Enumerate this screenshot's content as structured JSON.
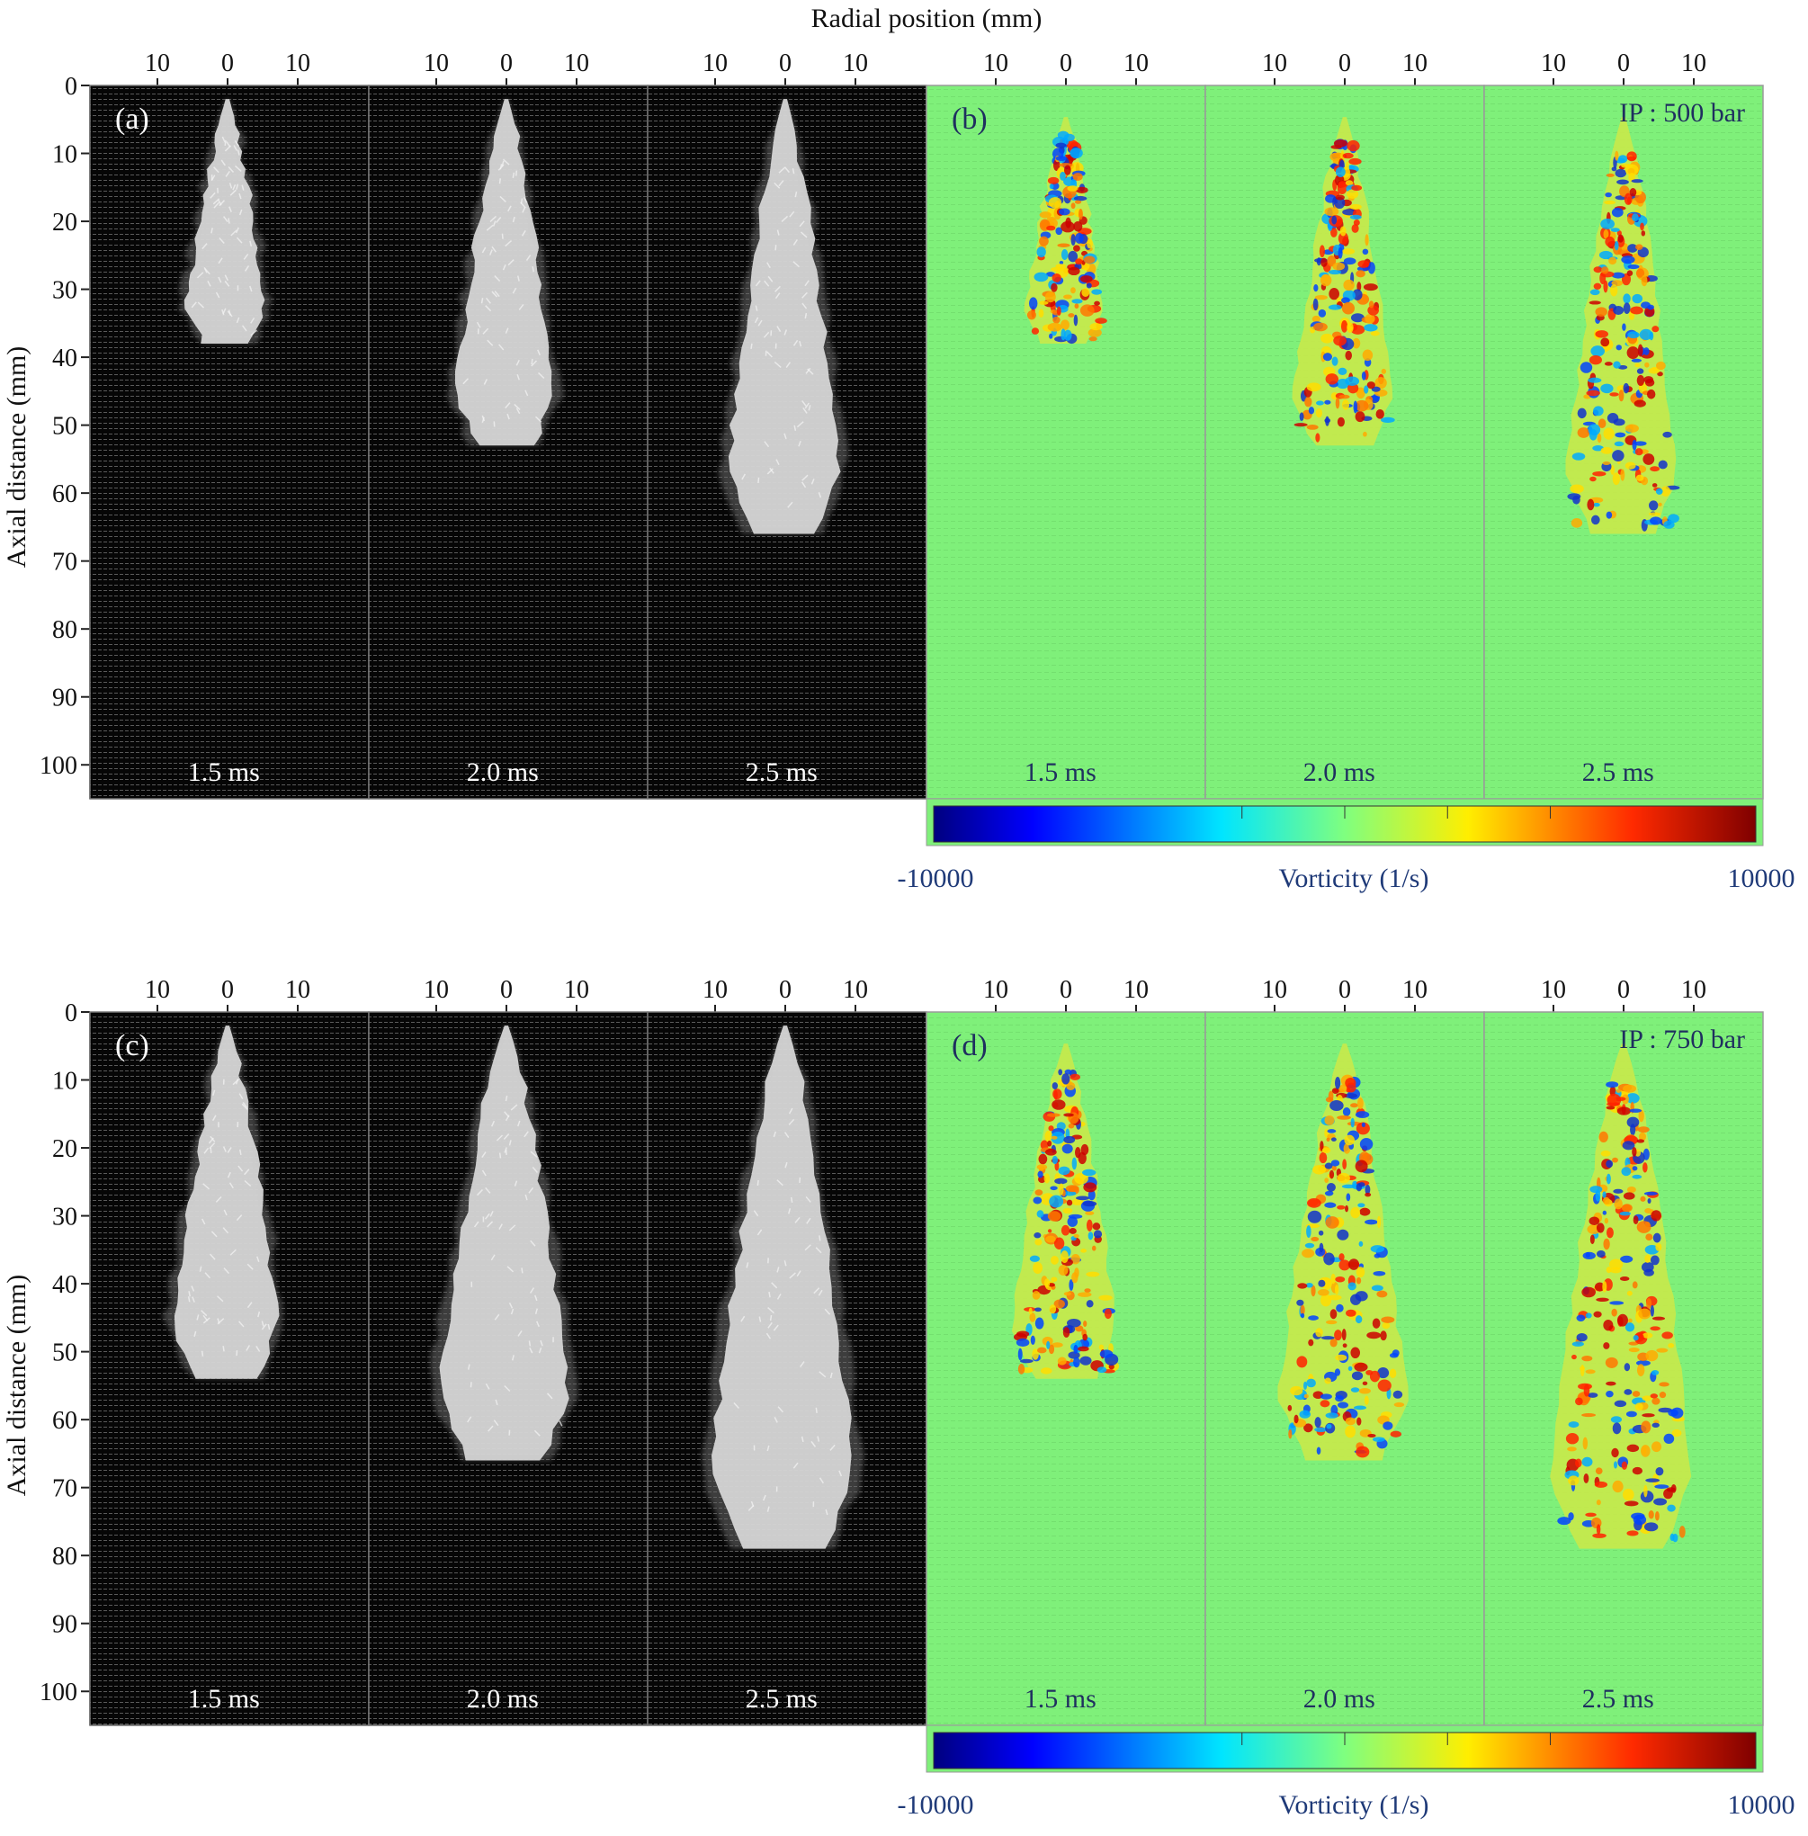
{
  "figure": {
    "top_axis_title": "Radial position (mm)",
    "left_axis_title": "Axial distance (mm)",
    "radial_ticks": [
      "10",
      "0",
      "10"
    ],
    "axial_ticks": [
      "0",
      "10",
      "20",
      "30",
      "40",
      "50",
      "60",
      "70",
      "80",
      "90",
      "100"
    ],
    "colors": {
      "background_piv": "#0a0a0a",
      "spray": "#d9d9d9",
      "vorticity_background": "#7ff07a",
      "colorbar_axis_text": "#1f3a78"
    },
    "rows": [
      {
        "injection_pressure": "IP : 500 bar",
        "piv_label": "(a)",
        "vort_label": "(b)",
        "frames": [
          {
            "time": "1.5 ms",
            "tip_mm": 38,
            "half_width_mm": 6
          },
          {
            "time": "2.0 ms",
            "tip_mm": 53,
            "half_width_mm": 7.5
          },
          {
            "time": "2.5 ms",
            "tip_mm": 66,
            "half_width_mm": 8.5
          }
        ],
        "colorbar": {
          "min": "-10000",
          "max": "10000",
          "label": "Vorticity (1/s)"
        }
      },
      {
        "injection_pressure": "IP : 750 bar",
        "piv_label": "(c)",
        "vort_label": "(d)",
        "frames": [
          {
            "time": "1.5 ms",
            "tip_mm": 54,
            "half_width_mm": 8
          },
          {
            "time": "2.0 ms",
            "tip_mm": 66,
            "half_width_mm": 10
          },
          {
            "time": "2.5 ms",
            "tip_mm": 79,
            "half_width_mm": 11
          }
        ],
        "colorbar": {
          "min": "-10000",
          "max": "10000",
          "label": "Vorticity (1/s)"
        }
      }
    ]
  }
}
